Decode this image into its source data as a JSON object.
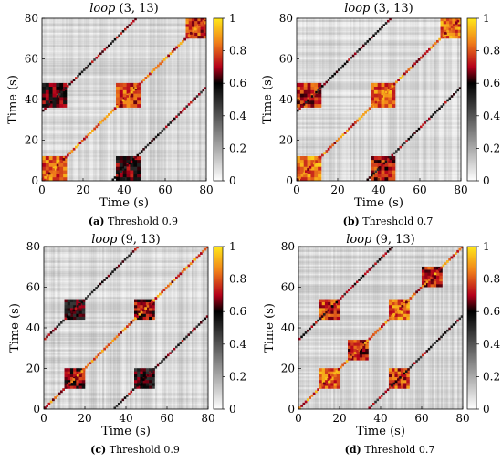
{
  "chart_data": [
    {
      "type": "heatmap",
      "panel": "a",
      "title_italic": "loop",
      "title_rest": "(3, 13)",
      "xlabel": "Time (s)",
      "ylabel": "Time (s)",
      "xlim": [
        0,
        80
      ],
      "ylim": [
        0,
        80
      ],
      "xticks": [
        "0",
        "20",
        "40",
        "60",
        "80"
      ],
      "yticks": [
        "0",
        "20",
        "40",
        "60",
        "80"
      ],
      "colorbar": {
        "range": [
          0,
          1
        ],
        "ticks": [
          "0",
          "0.2",
          "0.4",
          "0.6",
          "0.8",
          "1"
        ],
        "colormap": [
          "#ffffff",
          "#000000",
          "#b3001b",
          "#f07f1a",
          "#ffe81a"
        ]
      },
      "threshold": 0.9,
      "caption_label": "(a)",
      "caption_text": "Threshold 0.9",
      "similarity_blocks": [
        {
          "x": [
            0,
            12
          ],
          "y": [
            0,
            12
          ],
          "level": 0.95
        },
        {
          "x": [
            36,
            48
          ],
          "y": [
            36,
            48
          ],
          "level": 0.9
        },
        {
          "x": [
            70,
            80
          ],
          "y": [
            70,
            80
          ],
          "level": 0.9
        },
        {
          "x": [
            0,
            12
          ],
          "y": [
            36,
            48
          ],
          "level": 0.75
        },
        {
          "x": [
            36,
            48
          ],
          "y": [
            0,
            12
          ],
          "level": 0.75
        }
      ]
    },
    {
      "type": "heatmap",
      "panel": "b",
      "title_italic": "loop",
      "title_rest": "(3, 13)",
      "xlabel": "Time (s)",
      "ylabel": "Time (s)",
      "xlim": [
        0,
        80
      ],
      "ylim": [
        0,
        80
      ],
      "xticks": [
        "0",
        "20",
        "40",
        "60",
        "80"
      ],
      "yticks": [
        "0",
        "20",
        "40",
        "60",
        "80"
      ],
      "colorbar": {
        "range": [
          0,
          1
        ],
        "ticks": [
          "0",
          "0.2",
          "0.4",
          "0.6",
          "0.8",
          "1"
        ],
        "colormap": [
          "#ffffff",
          "#000000",
          "#b3001b",
          "#f07f1a",
          "#ffe81a"
        ]
      },
      "threshold": 0.7,
      "caption_label": "(b)",
      "caption_text": "Threshold 0.7",
      "similarity_blocks": [
        {
          "x": [
            0,
            12
          ],
          "y": [
            0,
            12
          ],
          "level": 0.98
        },
        {
          "x": [
            36,
            48
          ],
          "y": [
            36,
            48
          ],
          "level": 0.95
        },
        {
          "x": [
            70,
            80
          ],
          "y": [
            70,
            80
          ],
          "level": 0.95
        },
        {
          "x": [
            0,
            12
          ],
          "y": [
            36,
            48
          ],
          "level": 0.85
        },
        {
          "x": [
            36,
            48
          ],
          "y": [
            0,
            12
          ],
          "level": 0.85
        }
      ]
    },
    {
      "type": "heatmap",
      "panel": "c",
      "title_italic": "loop",
      "title_rest": "(9, 13)",
      "xlabel": "Time (s)",
      "ylabel": "Time (s)",
      "xlim": [
        0,
        80
      ],
      "ylim": [
        0,
        80
      ],
      "xticks": [
        "0",
        "20",
        "40",
        "60",
        "80"
      ],
      "yticks": [
        "0",
        "20",
        "40",
        "60",
        "80"
      ],
      "colorbar": {
        "range": [
          0,
          1
        ],
        "ticks": [
          "0",
          "0.2",
          "0.4",
          "0.6",
          "0.8",
          "1"
        ],
        "colormap": [
          "#ffffff",
          "#000000",
          "#b3001b",
          "#f07f1a",
          "#ffe81a"
        ]
      },
      "threshold": 0.9,
      "caption_label": "(c)",
      "caption_text": "Threshold 0.9",
      "similarity_blocks": [
        {
          "x": [
            10,
            20
          ],
          "y": [
            10,
            20
          ],
          "level": 0.8
        },
        {
          "x": [
            44,
            54
          ],
          "y": [
            44,
            54
          ],
          "level": 0.8
        },
        {
          "x": [
            10,
            20
          ],
          "y": [
            44,
            54
          ],
          "level": 0.7
        },
        {
          "x": [
            44,
            54
          ],
          "y": [
            10,
            20
          ],
          "level": 0.7
        }
      ]
    },
    {
      "type": "heatmap",
      "panel": "d",
      "title_italic": "loop",
      "title_rest": "(9, 13)",
      "xlabel": "Time (s)",
      "ylabel": "Time (s)",
      "xlim": [
        0,
        80
      ],
      "ylim": [
        0,
        80
      ],
      "xticks": [
        "0",
        "20",
        "40",
        "60",
        "80"
      ],
      "yticks": [
        "0",
        "20",
        "40",
        "60",
        "80"
      ],
      "colorbar": {
        "range": [
          0,
          1
        ],
        "ticks": [
          "0",
          "0.2",
          "0.4",
          "0.6",
          "0.8",
          "1"
        ],
        "colormap": [
          "#ffffff",
          "#000000",
          "#b3001b",
          "#f07f1a",
          "#ffe81a"
        ]
      },
      "threshold": 0.7,
      "caption_label": "(d)",
      "caption_text": "Threshold 0.7",
      "similarity_blocks": [
        {
          "x": [
            10,
            20
          ],
          "y": [
            10,
            20
          ],
          "level": 0.95
        },
        {
          "x": [
            44,
            54
          ],
          "y": [
            44,
            54
          ],
          "level": 0.95
        },
        {
          "x": [
            10,
            20
          ],
          "y": [
            44,
            54
          ],
          "level": 0.9
        },
        {
          "x": [
            44,
            54
          ],
          "y": [
            10,
            20
          ],
          "level": 0.9
        },
        {
          "x": [
            24,
            34
          ],
          "y": [
            24,
            34
          ],
          "level": 0.85
        },
        {
          "x": [
            60,
            70
          ],
          "y": [
            60,
            70
          ],
          "level": 0.85
        }
      ]
    }
  ]
}
